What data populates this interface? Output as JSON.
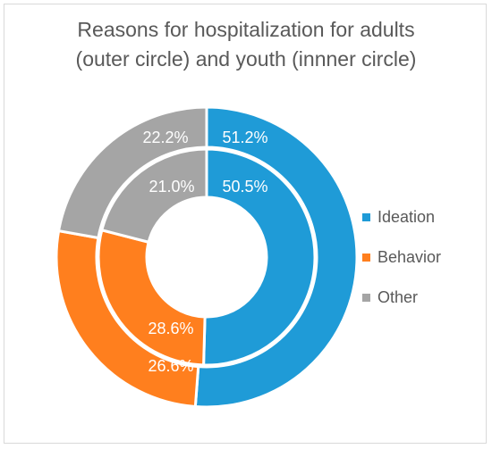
{
  "chart_data": {
    "type": "pie",
    "title_lines": [
      "Reasons for hospitalization for adults",
      "(outer circle) and youth (innner circle)"
    ],
    "categories": [
      "Ideation",
      "Behavior",
      "Other"
    ],
    "colors": [
      "#1f9bd7",
      "#ff7f1e",
      "#a5a5a5"
    ],
    "series": [
      {
        "ring": "outer",
        "values": [
          51.2,
          26.6,
          22.2
        ],
        "labels": [
          "51.2%",
          "26.6%",
          "22.2%"
        ]
      },
      {
        "ring": "inner",
        "values": [
          50.5,
          28.6,
          21.0
        ],
        "labels": [
          "50.5%",
          "28.6%",
          "21.0%"
        ]
      }
    ],
    "legend_position": "right"
  }
}
